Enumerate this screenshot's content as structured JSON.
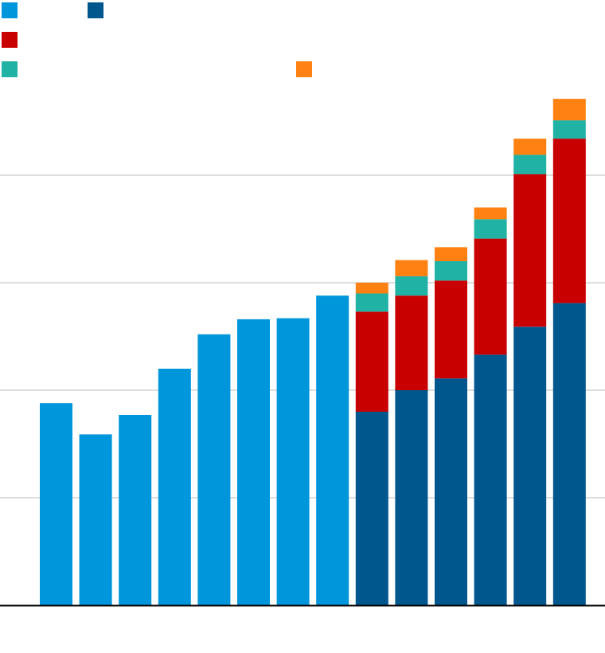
{
  "chart_data": {
    "type": "bar",
    "stacked": true,
    "title": "",
    "xlabel": "",
    "ylabel": "",
    "ylim": [
      0,
      5.6
    ],
    "gridlines": [
      1,
      2,
      3,
      4
    ],
    "grid": true,
    "categories": [
      "",
      "",
      "",
      "",
      "",
      "",
      "",
      "",
      "",
      "",
      "",
      "",
      "",
      ""
    ],
    "series": [
      {
        "color": "#0096DB",
        "values": [
          1.88,
          1.59,
          1.77,
          2.2,
          2.52,
          2.66,
          2.67,
          2.88,
          0,
          0,
          0,
          0,
          0,
          0
        ]
      },
      {
        "color": "#00578E",
        "values": [
          0,
          0,
          0,
          0,
          0,
          0,
          0,
          0,
          1.8,
          2.0,
          2.11,
          2.33,
          2.59,
          2.81
        ]
      },
      {
        "color": "#C80000",
        "values": [
          0,
          0,
          0,
          0,
          0,
          0,
          0,
          0,
          0.93,
          0.88,
          0.91,
          1.08,
          1.42,
          1.53
        ]
      },
      {
        "color": "#20B2A4",
        "values": [
          0,
          0,
          0,
          0,
          0,
          0,
          0,
          0,
          0.17,
          0.18,
          0.18,
          0.18,
          0.18,
          0.17
        ]
      },
      {
        "color": "#FF8112",
        "values": [
          0,
          0,
          0,
          0,
          0,
          0,
          0,
          0,
          0.1,
          0.15,
          0.13,
          0.11,
          0.15,
          0.2
        ]
      }
    ],
    "legend": [
      {
        "color": "#0096DB",
        "position": "top-left"
      },
      {
        "color": "#00578E",
        "position": "top-left"
      },
      {
        "color": "#C80000",
        "position": "top-left"
      },
      {
        "color": "#20B2A4",
        "position": "top-left"
      },
      {
        "color": "#FF8112",
        "position": "top-left"
      }
    ],
    "colors": {
      "grid": "#BBBBBB",
      "baseline": "#000000"
    }
  }
}
